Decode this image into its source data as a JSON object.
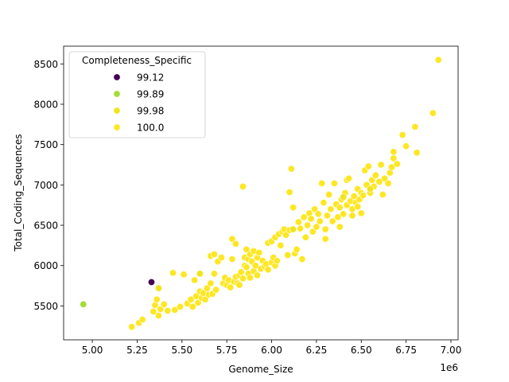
{
  "chart_data": {
    "type": "scatter",
    "title": "",
    "xlabel": "Genome_Size",
    "ylabel": "Total_Coding_Sequences",
    "x_offset_label": "1e6",
    "xlim": [
      4.84,
      7.04
    ],
    "ylim": [
      5080,
      8720
    ],
    "x_ticks": [
      5.0,
      5.25,
      5.5,
      5.75,
      6.0,
      6.25,
      6.5,
      6.75,
      7.0
    ],
    "x_tick_labels": [
      "5.00",
      "5.25",
      "5.50",
      "5.75",
      "6.00",
      "6.25",
      "6.50",
      "6.75",
      "7.00"
    ],
    "y_ticks": [
      5500,
      6000,
      6500,
      7000,
      7500,
      8000,
      8500
    ],
    "y_tick_labels": [
      "5500",
      "6000",
      "6500",
      "7000",
      "7500",
      "8000",
      "8500"
    ],
    "grid": false,
    "legend": {
      "title": "Completeness_Specific",
      "placement": "top-left",
      "entries": [
        {
          "label": "99.12",
          "color": "#440154"
        },
        {
          "label": "99.89",
          "color": "#a5db36"
        },
        {
          "label": "99.98",
          "color": "#f0e51c"
        },
        {
          "label": "100.0",
          "color": "#fde725"
        }
      ]
    },
    "series": [
      {
        "name": "99.12",
        "color": "#440154",
        "points": [
          [
            5.33,
            5795
          ]
        ]
      },
      {
        "name": "99.89",
        "color": "#a5db36",
        "points": [
          [
            4.95,
            5520
          ]
        ]
      },
      {
        "name": "99.98",
        "color": "#f0e51c",
        "points": [
          [
            5.37,
            5720
          ],
          [
            5.6,
            5900
          ],
          [
            6.12,
            6450
          ],
          [
            6.4,
            6850
          ],
          [
            6.55,
            6950
          ]
        ]
      },
      {
        "name": "100.0",
        "color": "#fde725",
        "points": [
          [
            5.22,
            5240
          ],
          [
            5.26,
            5290
          ],
          [
            5.28,
            5330
          ],
          [
            5.34,
            5430
          ],
          [
            5.35,
            5510
          ],
          [
            5.36,
            5580
          ],
          [
            5.37,
            5380
          ],
          [
            5.38,
            5460
          ],
          [
            5.4,
            5520
          ],
          [
            5.42,
            5440
          ],
          [
            5.45,
            5910
          ],
          [
            5.46,
            5450
          ],
          [
            5.49,
            5490
          ],
          [
            5.51,
            5890
          ],
          [
            5.53,
            5530
          ],
          [
            5.55,
            5580
          ],
          [
            5.56,
            5490
          ],
          [
            5.57,
            5820
          ],
          [
            5.58,
            5620
          ],
          [
            5.59,
            5540
          ],
          [
            5.6,
            5680
          ],
          [
            5.61,
            5600
          ],
          [
            5.62,
            5660
          ],
          [
            5.63,
            5580
          ],
          [
            5.64,
            5720
          ],
          [
            5.65,
            5640
          ],
          [
            5.66,
            5780
          ],
          [
            5.67,
            5650
          ],
          [
            5.68,
            5900
          ],
          [
            5.69,
            5700
          ],
          [
            5.66,
            6120
          ],
          [
            5.68,
            6140
          ],
          [
            5.7,
            6050
          ],
          [
            5.72,
            6100
          ],
          [
            5.73,
            5780
          ],
          [
            5.74,
            5850
          ],
          [
            5.75,
            5760
          ],
          [
            5.76,
            5820
          ],
          [
            5.77,
            5730
          ],
          [
            5.78,
            6080
          ],
          [
            5.78,
            6330
          ],
          [
            5.8,
            6270
          ],
          [
            5.79,
            5800
          ],
          [
            5.8,
            5860
          ],
          [
            5.81,
            5780
          ],
          [
            5.82,
            5880
          ],
          [
            5.82,
            5760
          ],
          [
            5.83,
            5920
          ],
          [
            5.84,
            5840
          ],
          [
            5.85,
            6000
          ],
          [
            5.85,
            6100
          ],
          [
            5.86,
            6200
          ],
          [
            5.86,
            5980
          ],
          [
            5.87,
            6080
          ],
          [
            5.87,
            5900
          ],
          [
            5.88,
            6140
          ],
          [
            5.88,
            5850
          ],
          [
            5.89,
            6050
          ],
          [
            5.9,
            5930
          ],
          [
            5.9,
            6180
          ],
          [
            5.91,
            6000
          ],
          [
            5.92,
            6100
          ],
          [
            5.92,
            5880
          ],
          [
            5.93,
            6160
          ],
          [
            5.94,
            5960
          ],
          [
            5.95,
            6060
          ],
          [
            5.96,
            5990
          ],
          [
            5.97,
            6020
          ],
          [
            5.98,
            6280
          ],
          [
            5.98,
            5950
          ],
          [
            6.0,
            6040
          ],
          [
            6.0,
            6300
          ],
          [
            6.01,
            6100
          ],
          [
            6.02,
            6350
          ],
          [
            6.02,
            6000
          ],
          [
            6.03,
            6060
          ],
          [
            6.04,
            6390
          ],
          [
            6.05,
            6250
          ],
          [
            6.06,
            6420
          ],
          [
            6.07,
            6450
          ],
          [
            6.08,
            6380
          ],
          [
            6.09,
            6130
          ],
          [
            6.1,
            6440
          ],
          [
            6.1,
            6910
          ],
          [
            6.11,
            7200
          ],
          [
            6.12,
            6720
          ],
          [
            6.13,
            6150
          ],
          [
            6.14,
            6200
          ],
          [
            6.15,
            6540
          ],
          [
            6.16,
            6460
          ],
          [
            6.17,
            6080
          ],
          [
            6.18,
            6600
          ],
          [
            6.19,
            6350
          ],
          [
            6.2,
            6500
          ],
          [
            6.21,
            6650
          ],
          [
            6.22,
            6580
          ],
          [
            6.23,
            6420
          ],
          [
            6.24,
            6700
          ],
          [
            6.25,
            6480
          ],
          [
            6.26,
            6640
          ],
          [
            6.27,
            6550
          ],
          [
            6.28,
            7020
          ],
          [
            6.29,
            6780
          ],
          [
            6.3,
            6330
          ],
          [
            6.31,
            6620
          ],
          [
            6.32,
            6880
          ],
          [
            6.33,
            6700
          ],
          [
            6.34,
            6550
          ],
          [
            6.35,
            7020
          ],
          [
            6.36,
            6760
          ],
          [
            6.37,
            6600
          ],
          [
            6.38,
            6720
          ],
          [
            6.39,
            6820
          ],
          [
            6.4,
            6640
          ],
          [
            6.41,
            6900
          ],
          [
            6.42,
            6750
          ],
          [
            6.42,
            7060
          ],
          [
            6.43,
            7080
          ],
          [
            6.44,
            6800
          ],
          [
            6.45,
            6700
          ],
          [
            6.46,
            6860
          ],
          [
            6.47,
            6780
          ],
          [
            6.48,
            6950
          ],
          [
            6.49,
            6820
          ],
          [
            6.5,
            6650
          ],
          [
            6.5,
            6900
          ],
          [
            6.51,
            6870
          ],
          [
            6.52,
            7180
          ],
          [
            6.53,
            7000
          ],
          [
            6.54,
            7230
          ],
          [
            6.55,
            6900
          ],
          [
            6.56,
            7060
          ],
          [
            6.57,
            6980
          ],
          [
            6.58,
            7120
          ],
          [
            6.6,
            7040
          ],
          [
            6.61,
            7250
          ],
          [
            6.62,
            6880
          ],
          [
            6.63,
            7080
          ],
          [
            6.65,
            7020
          ],
          [
            6.66,
            7150
          ],
          [
            6.67,
            7220
          ],
          [
            6.68,
            7330
          ],
          [
            6.68,
            7410
          ],
          [
            6.7,
            7260
          ],
          [
            6.73,
            7620
          ],
          [
            6.75,
            7480
          ],
          [
            6.8,
            7720
          ],
          [
            6.81,
            7400
          ],
          [
            6.9,
            7890
          ],
          [
            6.93,
            8550
          ],
          [
            5.84,
            6980
          ],
          [
            6.3,
            6450
          ],
          [
            6.38,
            6480
          ],
          [
            6.45,
            6620
          ],
          [
            6.48,
            6730
          ]
        ]
      }
    ]
  }
}
